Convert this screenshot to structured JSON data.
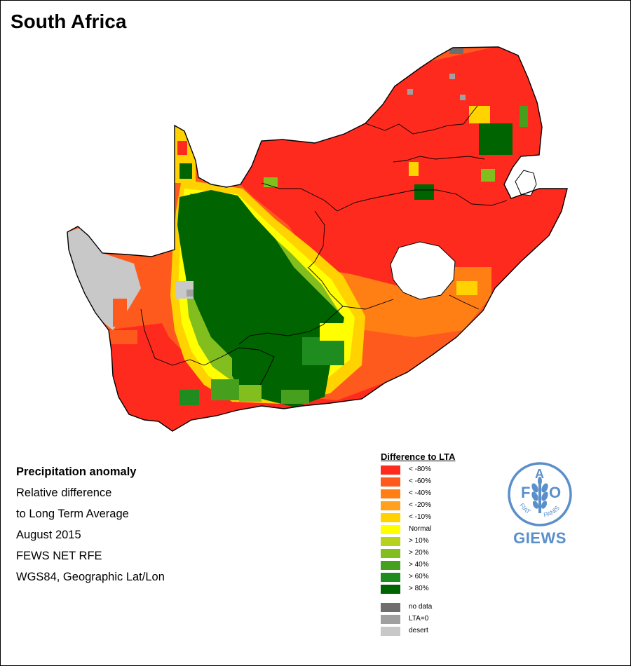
{
  "header": {
    "title": "South Africa"
  },
  "info": {
    "line1": "Precipitation anomaly",
    "line2": "Relative difference",
    "line3": "to Long Term Average",
    "line4": "August 2015",
    "line5": "FEWS NET RFE",
    "line6": "WGS84, Geographic Lat/Lon"
  },
  "legend": {
    "title": "Difference to LTA",
    "items": [
      {
        "label": "< -80%",
        "color": "#ff2a1e"
      },
      {
        "label": "< -60%",
        "color": "#ff5a1e"
      },
      {
        "label": "< -40%",
        "color": "#ff7f14"
      },
      {
        "label": "< -20%",
        "color": "#ffa01e"
      },
      {
        "label": "< -10%",
        "color": "#ffd200"
      },
      {
        "label": "Normal",
        "color": "#ffff00"
      },
      {
        "label": "> 10%",
        "color": "#b4d21e"
      },
      {
        "label": "> 20%",
        "color": "#82be1e"
      },
      {
        "label": "> 40%",
        "color": "#46a01e"
      },
      {
        "label": "> 60%",
        "color": "#1e8c1e"
      },
      {
        "label": "> 80%",
        "color": "#006400"
      }
    ],
    "extra": [
      {
        "label": "no data",
        "color": "#6e6e6e"
      },
      {
        "label": "LTA=0",
        "color": "#a0a0a0"
      },
      {
        "label": "desert",
        "color": "#c8c8c8"
      }
    ]
  },
  "logo": {
    "letter_f": "F",
    "letter_a": "A",
    "letter_o": "O",
    "motto_left": "FIAT",
    "motto_right": "PANIS",
    "brand": "GIEWS",
    "color": "#5b8fc9"
  }
}
